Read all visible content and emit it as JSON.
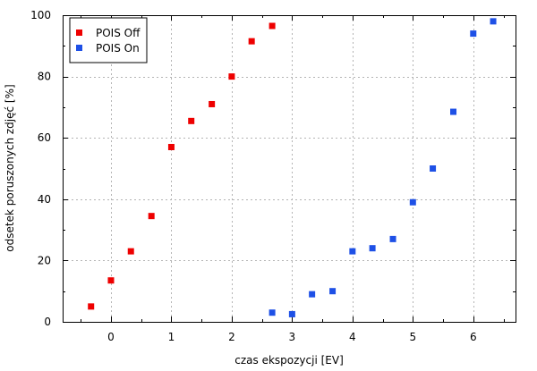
{
  "chart_data": {
    "type": "scatter",
    "xlabel": "czas ekspozycji [EV]",
    "ylabel": "odsetek poruszonych zdjęć [%]",
    "xlim": [
      -0.8,
      6.7
    ],
    "ylim": [
      0,
      100
    ],
    "xticks": [
      0,
      1,
      2,
      3,
      4,
      5,
      6
    ],
    "yticks": [
      0,
      20,
      40,
      60,
      80,
      100
    ],
    "grid": true,
    "legend_position": "top-left",
    "series": [
      {
        "name": "POIS Off",
        "color": "#ee0000",
        "marker": "square",
        "points": [
          {
            "x": -0.33,
            "y": 5
          },
          {
            "x": 0,
            "y": 13.5
          },
          {
            "x": 0.33,
            "y": 23
          },
          {
            "x": 0.67,
            "y": 34.5
          },
          {
            "x": 1,
            "y": 57
          },
          {
            "x": 1.33,
            "y": 65.5
          },
          {
            "x": 1.67,
            "y": 71
          },
          {
            "x": 2,
            "y": 80
          },
          {
            "x": 2.33,
            "y": 91.5
          },
          {
            "x": 2.67,
            "y": 96.5
          }
        ]
      },
      {
        "name": "POIS On",
        "color": "#1e50e6",
        "marker": "square",
        "points": [
          {
            "x": 2.67,
            "y": 3
          },
          {
            "x": 3,
            "y": 2.5
          },
          {
            "x": 3.33,
            "y": 9
          },
          {
            "x": 3.67,
            "y": 10
          },
          {
            "x": 4,
            "y": 23
          },
          {
            "x": 4.33,
            "y": 24
          },
          {
            "x": 4.67,
            "y": 27
          },
          {
            "x": 5,
            "y": 39
          },
          {
            "x": 5.33,
            "y": 50
          },
          {
            "x": 5.67,
            "y": 68.5
          },
          {
            "x": 6,
            "y": 94
          },
          {
            "x": 6.33,
            "y": 98
          }
        ]
      }
    ]
  }
}
